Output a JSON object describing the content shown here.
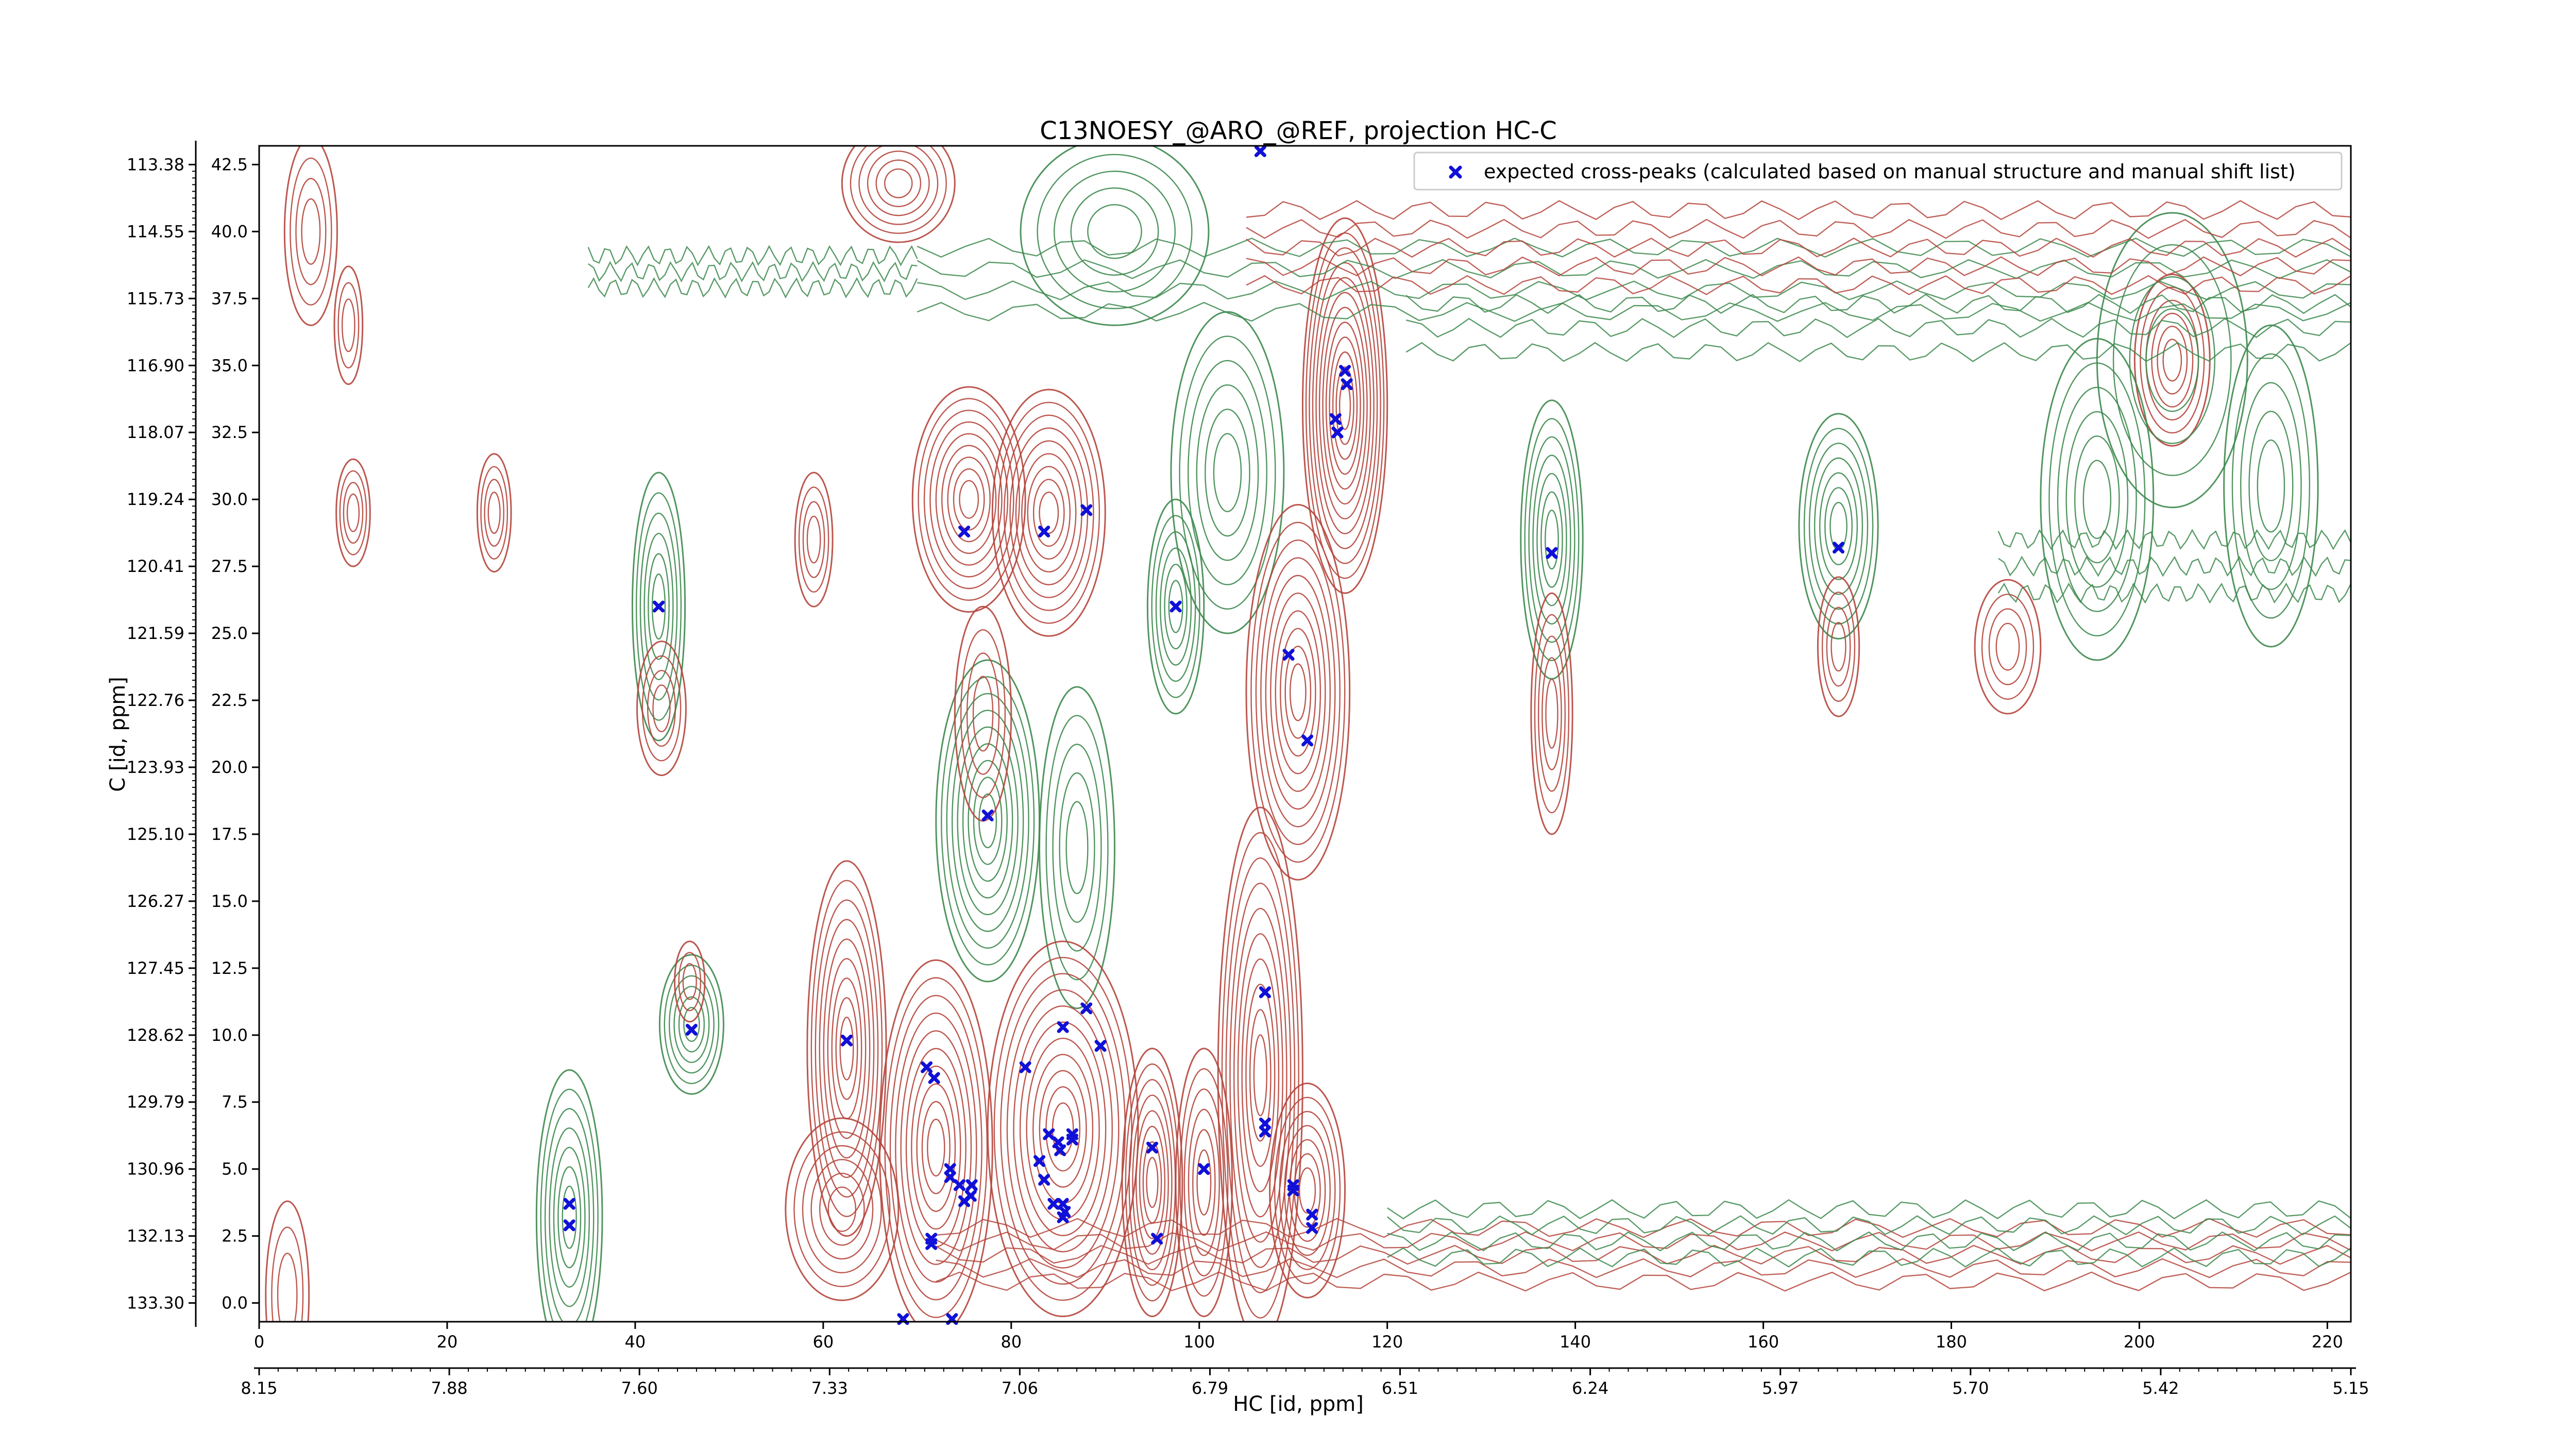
{
  "chart_data": {
    "type": "scatter",
    "title": "C13NOESY_@ARO_@REF, projection HC-C",
    "xlabel": "HC [id, ppm]",
    "ylabel": "C [id, ppm]",
    "x_index_ticks": [
      "0",
      "20",
      "40",
      "60",
      "80",
      "100",
      "120",
      "140",
      "160",
      "180",
      "200",
      "220"
    ],
    "x_ppm_ticks": [
      "8.15",
      "7.88",
      "7.60",
      "7.33",
      "7.06",
      "6.79",
      "6.51",
      "6.24",
      "5.97",
      "5.70",
      "5.42",
      "5.15"
    ],
    "y_index_ticks": [
      "0.0",
      "2.5",
      "5.0",
      "7.5",
      "10.0",
      "12.5",
      "15.0",
      "17.5",
      "20.0",
      "22.5",
      "25.0",
      "27.5",
      "30.0",
      "32.5",
      "35.0",
      "37.5",
      "40.0",
      "42.5"
    ],
    "y_ppm_ticks": [
      "133.30",
      "132.13",
      "130.96",
      "129.79",
      "128.62",
      "127.45",
      "126.27",
      "125.10",
      "123.93",
      "122.76",
      "121.59",
      "120.41",
      "119.24",
      "118.07",
      "116.90",
      "115.73",
      "114.55",
      "113.38"
    ],
    "xlim": [
      0,
      222.5
    ],
    "ylim": [
      -0.7,
      43.2
    ],
    "grid": false,
    "legend_position": "top-right",
    "series": [
      {
        "name": "expected cross-peaks (calculated based on manual structure and manual shift list)",
        "color": "#1010d8",
        "marker": "x",
        "points": [
          [
            42.5,
            26.0
          ],
          [
            46.0,
            10.2
          ],
          [
            33.0,
            3.7
          ],
          [
            33.0,
            2.9
          ],
          [
            62.5,
            9.8
          ],
          [
            68.5,
            -0.6
          ],
          [
            71.0,
            8.8
          ],
          [
            71.8,
            8.4
          ],
          [
            71.5,
            2.4
          ],
          [
            71.5,
            2.2
          ],
          [
            73.5,
            5.0
          ],
          [
            73.5,
            4.7
          ],
          [
            73.7,
            -0.6
          ],
          [
            74.5,
            4.4
          ],
          [
            75.0,
            3.8
          ],
          [
            75.7,
            4.0
          ],
          [
            75.8,
            4.4
          ],
          [
            75.0,
            28.8
          ],
          [
            77.5,
            18.2
          ],
          [
            81.5,
            8.8
          ],
          [
            83.0,
            5.3
          ],
          [
            83.5,
            4.6
          ],
          [
            84.0,
            6.3
          ],
          [
            84.5,
            3.7
          ],
          [
            85.0,
            6.0
          ],
          [
            85.2,
            5.7
          ],
          [
            85.5,
            10.3
          ],
          [
            85.5,
            3.7
          ],
          [
            85.7,
            3.4
          ],
          [
            85.5,
            3.2
          ],
          [
            86.5,
            6.3
          ],
          [
            86.5,
            6.1
          ],
          [
            83.5,
            28.8
          ],
          [
            88.0,
            29.6
          ],
          [
            88.0,
            11.0
          ],
          [
            89.5,
            9.6
          ],
          [
            95.0,
            5.8
          ],
          [
            95.5,
            2.4
          ],
          [
            97.5,
            26.0
          ],
          [
            100.5,
            5.0
          ],
          [
            106.5,
            43.0
          ],
          [
            107.0,
            11.6
          ],
          [
            107.0,
            6.7
          ],
          [
            107.0,
            6.4
          ],
          [
            109.5,
            24.2
          ],
          [
            110.0,
            4.4
          ],
          [
            110.0,
            4.2
          ],
          [
            111.5,
            21.0
          ],
          [
            112.0,
            3.3
          ],
          [
            112.0,
            2.8
          ],
          [
            114.5,
            33.0
          ],
          [
            114.7,
            32.5
          ],
          [
            115.5,
            34.8
          ],
          [
            115.7,
            34.3
          ],
          [
            137.5,
            28.0
          ],
          [
            168.0,
            28.2
          ]
        ]
      }
    ]
  }
}
